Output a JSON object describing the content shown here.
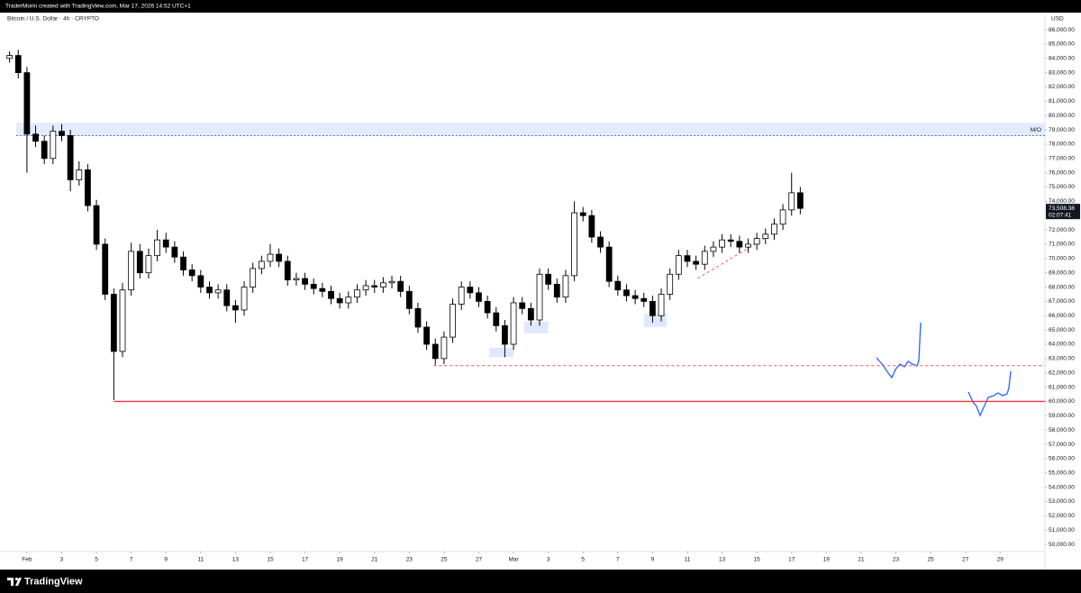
{
  "header": {
    "credit": "TraderMorin created with TradingView.com, Mar 17, 2026 14:52 UTC+1"
  },
  "footer": {
    "brand": "TradingView"
  },
  "chart_data": {
    "type": "candlestick",
    "title": "Bitcoin / U.S. Dollar · 4h · CRYPTO",
    "currency": "USD",
    "x": [
      -1,
      -0.5,
      0,
      0.5,
      1,
      1.5,
      2,
      2.5,
      3,
      3.5,
      4,
      4.5,
      5,
      5.5,
      6,
      6.5,
      7,
      7.5,
      8,
      8.5,
      9,
      9.5,
      10,
      10.5,
      11,
      11.5,
      12,
      12.5,
      13,
      13.5,
      14,
      14.5,
      15,
      15.5,
      16,
      16.5,
      17,
      17.5,
      18,
      18.5,
      19,
      19.5,
      20,
      20.5,
      21,
      21.5,
      22,
      22.5,
      23,
      23.5,
      24,
      24.5,
      25,
      25.5,
      26,
      26.5,
      27,
      27.5,
      28,
      28.5,
      29,
      29.5,
      30,
      30.5,
      31,
      31.5,
      32,
      32.5,
      33,
      33.5,
      34,
      34.5,
      35,
      35.5,
      36,
      36.5,
      37,
      37.5,
      38,
      38.5,
      39,
      39.5,
      40,
      40.5,
      41,
      41.5,
      42,
      42.5,
      43,
      43.5,
      44,
      44.5
    ],
    "open": [
      84000,
      84200,
      83000,
      78700,
      78200,
      77000,
      78900,
      78600,
      75500,
      76200,
      73700,
      71000,
      67500,
      63500,
      67800,
      70500,
      69000,
      70200,
      71300,
      70800,
      70100,
      69200,
      68800,
      68000,
      67600,
      67800,
      66700,
      66400,
      68000,
      69300,
      69800,
      70300,
      69800,
      68500,
      68600,
      68200,
      67900,
      67700,
      67200,
      66900,
      67300,
      67800,
      68100,
      68000,
      68300,
      68400,
      67700,
      66500,
      65200,
      64000,
      63000,
      64500,
      66800,
      68000,
      67600,
      67000,
      66200,
      65300,
      64000,
      66900,
      66500,
      65700,
      68900,
      68200,
      67300,
      68800,
      73200,
      73000,
      71500,
      70800,
      68400,
      67800,
      67400,
      67200,
      67000,
      66000,
      67500,
      68900,
      70200,
      69800,
      69600,
      70500,
      70800,
      71300,
      71200,
      70800,
      71000,
      71400,
      71700,
      72400,
      73400,
      74600
    ],
    "high": [
      84500,
      84600,
      83400,
      79300,
      78600,
      79300,
      79400,
      79000,
      76800,
      76600,
      74100,
      71400,
      67900,
      68300,
      71100,
      71000,
      70700,
      72000,
      71800,
      71200,
      70500,
      69600,
      69200,
      68400,
      68200,
      68200,
      67100,
      68400,
      69700,
      70200,
      71000,
      70700,
      70200,
      69000,
      69000,
      68600,
      68300,
      68100,
      67600,
      67700,
      68200,
      68500,
      68500,
      68700,
      68800,
      68800,
      68100,
      66900,
      65600,
      64400,
      64900,
      67200,
      68400,
      68400,
      68000,
      67400,
      66600,
      65700,
      67300,
      67300,
      66900,
      69300,
      69300,
      68600,
      69200,
      74000,
      73600,
      73400,
      71900,
      71200,
      68800,
      68200,
      67800,
      67600,
      67400,
      67900,
      69300,
      70600,
      70600,
      70200,
      70900,
      71200,
      71700,
      71700,
      71600,
      71400,
      71800,
      72100,
      72800,
      73800,
      76000,
      75000
    ],
    "low": [
      83700,
      82600,
      76000,
      77800,
      76600,
      76600,
      78200,
      74700,
      75100,
      73300,
      70600,
      67100,
      60100,
      63100,
      67400,
      68600,
      68600,
      69800,
      70400,
      69700,
      68800,
      68400,
      67600,
      67200,
      67200,
      66300,
      65500,
      66000,
      67600,
      68900,
      69400,
      69400,
      68100,
      68100,
      67800,
      67500,
      67300,
      66800,
      66500,
      66500,
      66900,
      67400,
      67600,
      67600,
      67900,
      67300,
      66100,
      64800,
      63600,
      62550,
      62600,
      64100,
      66400,
      67200,
      66600,
      65800,
      64900,
      63100,
      63600,
      66100,
      65300,
      65300,
      67800,
      66900,
      66900,
      68400,
      72600,
      71100,
      70400,
      68000,
      67400,
      67000,
      66800,
      66600,
      65500,
      65600,
      67100,
      68500,
      69400,
      69200,
      69200,
      70100,
      70400,
      70800,
      70400,
      70400,
      70600,
      71000,
      71300,
      72000,
      73000,
      73100
    ],
    "close": [
      84200,
      83000,
      78700,
      78200,
      77000,
      78900,
      78600,
      75500,
      76200,
      73700,
      71000,
      67500,
      63500,
      67800,
      70500,
      69000,
      70200,
      71300,
      70800,
      70100,
      69200,
      68800,
      68000,
      67600,
      67800,
      66700,
      66400,
      68000,
      69300,
      69800,
      70300,
      69800,
      68500,
      68600,
      68200,
      67900,
      67700,
      67200,
      66900,
      67300,
      67800,
      68100,
      68000,
      68300,
      68400,
      67700,
      66500,
      65200,
      64000,
      63000,
      64500,
      66800,
      68000,
      67600,
      67000,
      66200,
      65300,
      64000,
      66900,
      66500,
      65700,
      68900,
      68200,
      67300,
      68800,
      73200,
      73000,
      71500,
      70800,
      68400,
      67800,
      67400,
      67200,
      67000,
      66000,
      67500,
      68900,
      70200,
      69800,
      69600,
      70500,
      70800,
      71300,
      71200,
      70800,
      71000,
      71400,
      71700,
      72400,
      73400,
      74600,
      73508.38
    ],
    "up_color": "#ffffff",
    "down_color": "#000000",
    "border_color": "#000000",
    "last_price_label": "73,508.38",
    "countdown": "02:07:41",
    "xlim": [
      -1.55,
      58.58
    ],
    "ylim": [
      49500,
      87200
    ],
    "grid": false,
    "xticks": [
      {
        "value": 0,
        "label": "Feb"
      },
      {
        "value": 2,
        "label": "3"
      },
      {
        "value": 4,
        "label": "5"
      },
      {
        "value": 6,
        "label": "7"
      },
      {
        "value": 8,
        "label": "9"
      },
      {
        "value": 10,
        "label": "11"
      },
      {
        "value": 12,
        "label": "13"
      },
      {
        "value": 14,
        "label": "15"
      },
      {
        "value": 16,
        "label": "17"
      },
      {
        "value": 18,
        "label": "19"
      },
      {
        "value": 20,
        "label": "21"
      },
      {
        "value": 22,
        "label": "23"
      },
      {
        "value": 24,
        "label": "25"
      },
      {
        "value": 26,
        "label": "27"
      },
      {
        "value": 28,
        "label": "Mar"
      },
      {
        "value": 30,
        "label": "3"
      },
      {
        "value": 32,
        "label": "5"
      },
      {
        "value": 34,
        "label": "7"
      },
      {
        "value": 36,
        "label": "9"
      },
      {
        "value": 38,
        "label": "11"
      },
      {
        "value": 40,
        "label": "13"
      },
      {
        "value": 42,
        "label": "15"
      },
      {
        "value": 44,
        "label": "17"
      },
      {
        "value": 46,
        "label": "19"
      },
      {
        "value": 48,
        "label": "21"
      },
      {
        "value": 50,
        "label": "23"
      },
      {
        "value": 52,
        "label": "25"
      },
      {
        "value": 54,
        "label": "27"
      },
      {
        "value": 56,
        "label": "29"
      }
    ],
    "yticks": [
      {
        "value": 86000,
        "label": "86,000.00"
      },
      {
        "value": 85000,
        "label": "85,000.00"
      },
      {
        "value": 84000,
        "label": "84,000.00"
      },
      {
        "value": 83000,
        "label": "83,000.00"
      },
      {
        "value": 82000,
        "label": "82,000.00"
      },
      {
        "value": 81000,
        "label": "81,000.00"
      },
      {
        "value": 80000,
        "label": "80,000.00"
      },
      {
        "value": 79000,
        "label": "79,000.00"
      },
      {
        "value": 78000,
        "label": "78,000.00"
      },
      {
        "value": 77000,
        "label": "77,000.00"
      },
      {
        "value": 76000,
        "label": "76,000.00"
      },
      {
        "value": 75000,
        "label": "75,000.00"
      },
      {
        "value": 74000,
        "label": "74,000.00"
      },
      {
        "value": 72000,
        "label": "72,000.00"
      },
      {
        "value": 71000,
        "label": "71,000.00"
      },
      {
        "value": 70000,
        "label": "70,000.00"
      },
      {
        "value": 69000,
        "label": "69,000.00"
      },
      {
        "value": 68000,
        "label": "68,000.00"
      },
      {
        "value": 67000,
        "label": "67,000.00"
      },
      {
        "value": 66000,
        "label": "66,000.00"
      },
      {
        "value": 65000,
        "label": "65,000.00"
      },
      {
        "value": 64000,
        "label": "64,000.00"
      },
      {
        "value": 63000,
        "label": "63,000.00"
      },
      {
        "value": 62000,
        "label": "62,000.00"
      },
      {
        "value": 61000,
        "label": "61,000.00"
      },
      {
        "value": 60000,
        "label": "60,000.00"
      },
      {
        "value": 59000,
        "label": "59,000.00"
      },
      {
        "value": 58000,
        "label": "58,000.00"
      },
      {
        "value": 57000,
        "label": "57,000.00"
      },
      {
        "value": 56000,
        "label": "56,000.00"
      },
      {
        "value": 55000,
        "label": "55,000.00"
      },
      {
        "value": 54000,
        "label": "54,000.00"
      },
      {
        "value": 53000,
        "label": "53,000.00"
      },
      {
        "value": 52000,
        "label": "52,000.00"
      },
      {
        "value": 51000,
        "label": "51,000.00"
      },
      {
        "value": 50000,
        "label": "50,000.00"
      }
    ],
    "zones": [
      {
        "label": "M/O",
        "from": 78600,
        "to": 79500,
        "color": "#2962ff"
      }
    ],
    "levels": [
      {
        "value": 60000,
        "from": 5.0,
        "color": "#f23645",
        "dashed": false
      },
      {
        "value": 62500,
        "from": 23.4,
        "color": "#f7525f",
        "dashed": true
      }
    ],
    "trendlines": [
      {
        "x": [
          38.6,
          42.4
        ],
        "y": [
          68610,
          71380
        ],
        "color": "#f7525f"
      }
    ],
    "boxes": [
      {
        "x": [
          26.6,
          28.0
        ],
        "y": [
          63100,
          63750
        ]
      },
      {
        "x": [
          28.6,
          30.0
        ],
        "y": [
          64770,
          65590
        ]
      },
      {
        "x": [
          35.5,
          36.8
        ],
        "y": [
          65210,
          66150
        ]
      }
    ]
  }
}
